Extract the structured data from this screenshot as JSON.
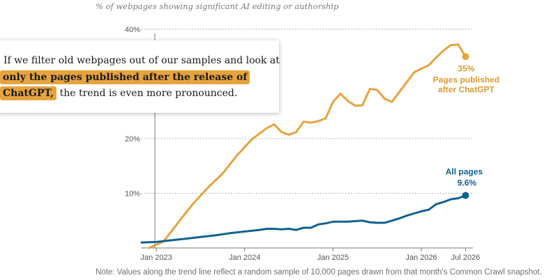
{
  "header": {
    "subtitle": "% of webpages showing significant AI editing or authorship"
  },
  "callout": {
    "line1": "If we filter old webpages out of our samples and look at",
    "highlight1": "only the pages published after the release of",
    "highlight2": "ChatGPT,",
    "rest": "the trend is even more pronounced."
  },
  "footer": {
    "note": "Note: Values along the trend line reflect a random sample of 10,000 pages drawn from that month's Common Crawl snapshot."
  },
  "colors": {
    "orange": "#e6a33e",
    "orange_text": "#e09a2d",
    "blue": "#0f6190",
    "grid": "#9a9a9a",
    "axis_text": "#555555"
  },
  "chart_data": {
    "type": "line",
    "title": "",
    "ylabel": "",
    "xlabel": "",
    "ylim": [
      0,
      40
    ],
    "y_ticks": [
      "10%",
      "20%",
      "40%"
    ],
    "y_tick_values": [
      10,
      20,
      40
    ],
    "x_ticks": [
      "Jan 2023",
      "Jan 2024",
      "Jan 2025",
      "Jan 2026",
      "Jul 2026"
    ],
    "x_tick_values": [
      "2023-01",
      "2024-01",
      "2025-01",
      "2026-01",
      "2026-07"
    ],
    "xlim": [
      "2022-11",
      "2026-08"
    ],
    "grid": true,
    "series": [
      {
        "name": "Pages published after ChatGPT",
        "end_label": "35%",
        "x": [
          "2022-12",
          "2023-02",
          "2023-04",
          "2023-06",
          "2023-08",
          "2023-10",
          "2023-12",
          "2024-02",
          "2024-04",
          "2024-05",
          "2024-06",
          "2024-07",
          "2024-08",
          "2024-09",
          "2024-10",
          "2024-11",
          "2024-12",
          "2025-01",
          "2025-02",
          "2025-03",
          "2025-04",
          "2025-05",
          "2025-06",
          "2025-07",
          "2025-08",
          "2025-09",
          "2025-10",
          "2025-11",
          "2025-12",
          "2026-01",
          "2026-02",
          "2026-03",
          "2026-04",
          "2026-05",
          "2026-06",
          "2026-07"
        ],
        "values": [
          0.0,
          1.2,
          4.7,
          8.1,
          11.0,
          13.6,
          17.0,
          19.9,
          21.9,
          22.6,
          21.2,
          20.7,
          21.2,
          23.1,
          22.9,
          23.2,
          23.7,
          26.7,
          28.2,
          26.9,
          26.0,
          26.1,
          29.1,
          28.9,
          27.3,
          26.7,
          28.5,
          30.3,
          32.1,
          32.8,
          33.4,
          34.8,
          36.1,
          37.1,
          37.2,
          35.0
        ]
      },
      {
        "name": "All pages",
        "end_label": "9.6%",
        "x": [
          "2022-11",
          "2023-01",
          "2023-03",
          "2023-05",
          "2023-07",
          "2023-09",
          "2023-11",
          "2024-01",
          "2024-03",
          "2024-04",
          "2024-05",
          "2024-06",
          "2024-07",
          "2024-08",
          "2024-09",
          "2024-10",
          "2024-11",
          "2024-12",
          "2025-01",
          "2025-02",
          "2025-03",
          "2025-04",
          "2025-05",
          "2025-06",
          "2025-07",
          "2025-08",
          "2025-09",
          "2025-10",
          "2025-11",
          "2025-12",
          "2026-01",
          "2026-02",
          "2026-03",
          "2026-04",
          "2026-05",
          "2026-06",
          "2026-07"
        ],
        "values": [
          1.0,
          1.1,
          1.4,
          1.7,
          2.0,
          2.3,
          2.7,
          3.0,
          3.3,
          3.5,
          3.5,
          3.4,
          3.5,
          3.3,
          3.7,
          3.7,
          4.3,
          4.5,
          4.8,
          4.8,
          4.8,
          4.9,
          5.0,
          4.7,
          4.6,
          4.6,
          5.0,
          5.4,
          5.9,
          6.3,
          6.7,
          7.0,
          8.0,
          8.4,
          8.9,
          9.1,
          9.6
        ]
      }
    ]
  }
}
